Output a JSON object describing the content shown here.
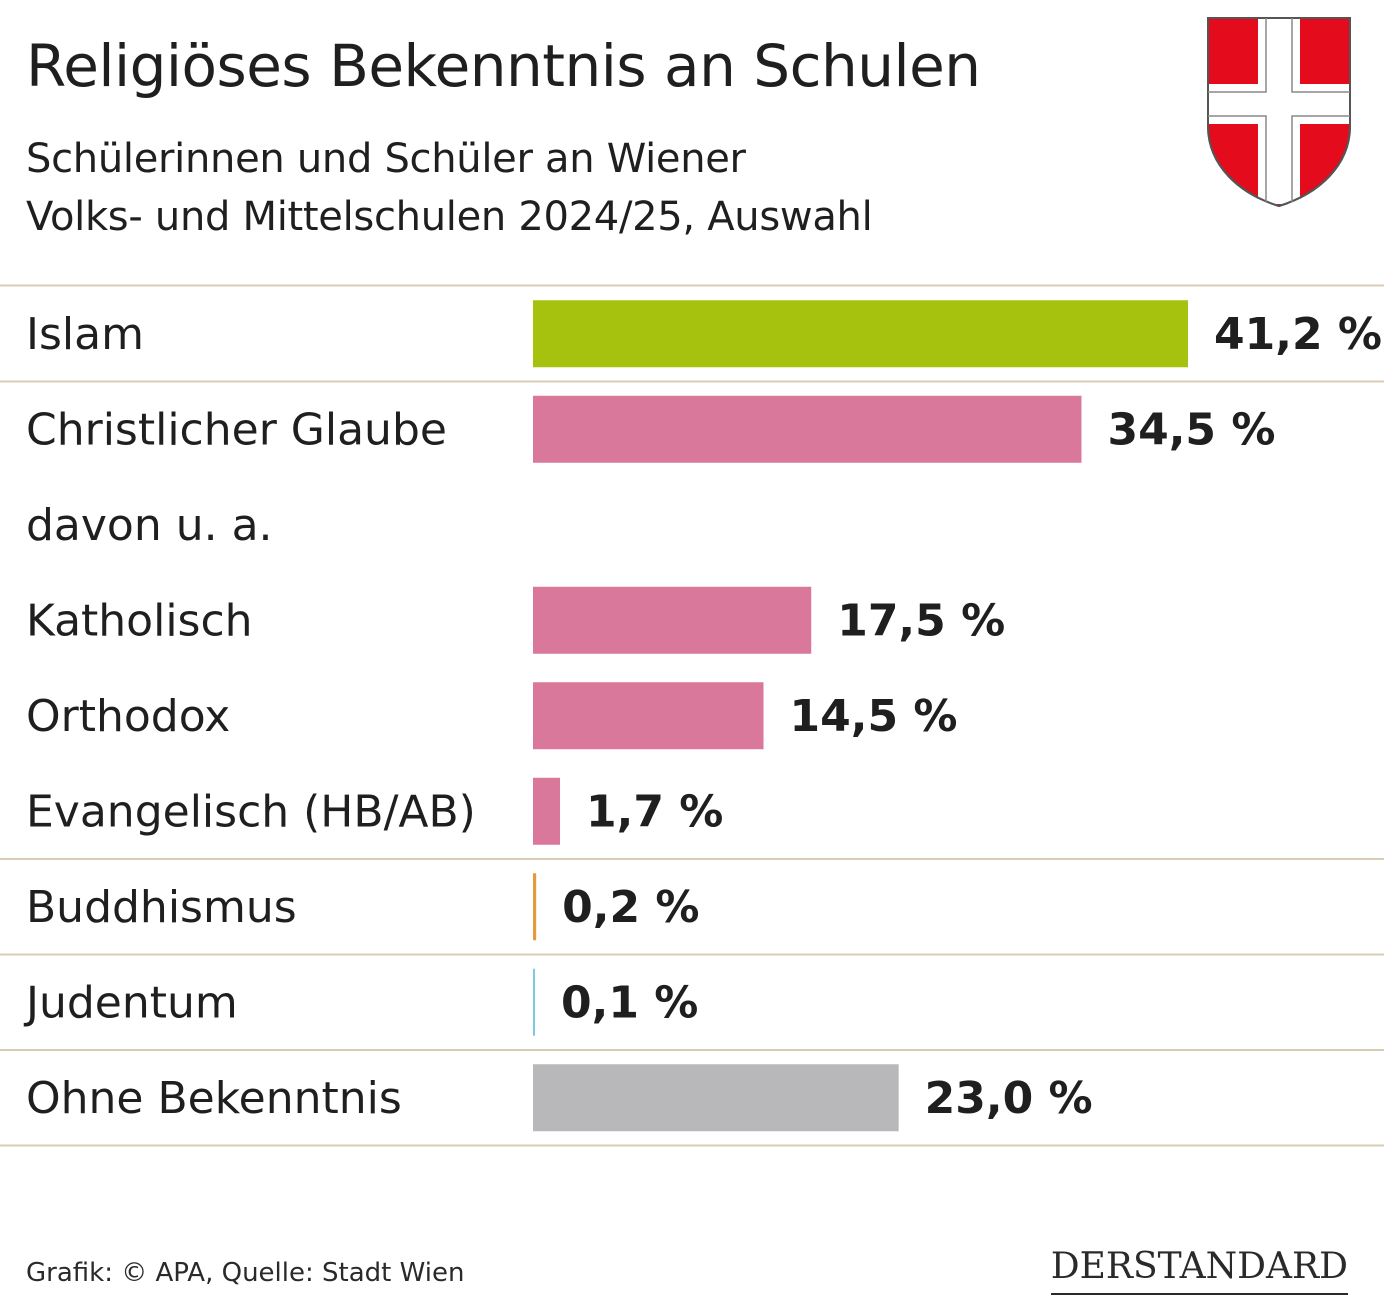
{
  "title": "Religiöses Bekenntnis an Schulen",
  "subtitle_line1": "Schülerinnen und Schüler an Wiener",
  "subtitle_line2": "Volks- und Mittelschulen 2024/25, Auswahl",
  "footer": "Grafik: © APA, Quelle: Stadt Wien",
  "brand": "DERSTANDARD",
  "colors": {
    "green": "#a6c20f",
    "pink": "#d9789a",
    "orange": "#e39a3b",
    "blue": "#7ec8e3",
    "gray": "#b8b8ba",
    "divider": "#d9ccb6",
    "crest_red": "#e30b1c"
  },
  "chart_data": {
    "type": "bar",
    "orientation": "horizontal",
    "unit": "%",
    "xlim": [
      0,
      41.2
    ],
    "rows": [
      {
        "label": "Islam",
        "value": 41.2,
        "value_label": "41,2 %",
        "color": "#a6c20f",
        "divider_after": true
      },
      {
        "label": "Christlicher Glaube",
        "value": 34.5,
        "value_label": "34,5 %",
        "color": "#d9789a",
        "divider_after": false
      },
      {
        "label": "davon u. a.",
        "value": null,
        "value_label": "",
        "color": "",
        "divider_after": false
      },
      {
        "label": "Katholisch",
        "value": 17.5,
        "value_label": "17,5 %",
        "color": "#d9789a",
        "divider_after": false
      },
      {
        "label": "Orthodox",
        "value": 14.5,
        "value_label": "14,5 %",
        "color": "#d9789a",
        "divider_after": false
      },
      {
        "label": "Evangelisch (HB/AB)",
        "value": 1.7,
        "value_label": "1,7 %",
        "color": "#d9789a",
        "divider_after": true
      },
      {
        "label": "Buddhismus",
        "value": 0.2,
        "value_label": "0,2 %",
        "color": "#e39a3b",
        "divider_after": true
      },
      {
        "label": "Judentum",
        "value": 0.1,
        "value_label": "0,1 %",
        "color": "#7ec8e3",
        "divider_after": true
      },
      {
        "label": "Ohne Bekenntnis",
        "value": 23.0,
        "value_label": "23,0 %",
        "color": "#b8b8ba",
        "divider_after": true
      }
    ]
  }
}
